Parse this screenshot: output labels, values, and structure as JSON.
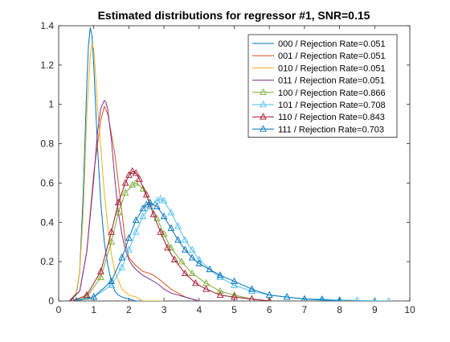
{
  "chart_data": {
    "type": "line",
    "title": "Estimated distributions for regressor #1,  SNR=0.15",
    "xlabel": "",
    "ylabel": "",
    "xlim": [
      0,
      10
    ],
    "ylim": [
      0,
      1.4
    ],
    "xticks": [
      0,
      1,
      2,
      3,
      4,
      5,
      6,
      7,
      8,
      9,
      10
    ],
    "yticks": [
      0,
      0.2,
      0.4,
      0.6,
      0.8,
      1,
      1.2,
      1.4
    ],
    "grid": false,
    "legend_position": "top-right",
    "series": [
      {
        "name": "000 / Rejection Rate=0.051",
        "color": "#0072BD",
        "marker": "none",
        "x": [
          0.3,
          0.5,
          0.6,
          0.7,
          0.8,
          0.85,
          0.9,
          0.95,
          1.0,
          1.05,
          1.1,
          1.2,
          1.3,
          1.4,
          1.5,
          1.6,
          1.7,
          1.8,
          2.0,
          2.2,
          2.4,
          2.6,
          2.8,
          3.0
        ],
        "y": [
          0.0,
          0.03,
          0.15,
          0.55,
          1.1,
          1.3,
          1.39,
          1.35,
          1.2,
          1.0,
          0.8,
          0.5,
          0.3,
          0.18,
          0.1,
          0.05,
          0.03,
          0.02,
          0.01,
          0.0,
          0.0,
          0.0,
          0.0,
          0.0
        ]
      },
      {
        "name": "001 / Rejection Rate=0.051",
        "color": "#D95319",
        "marker": "none",
        "x": [
          0.3,
          0.6,
          0.8,
          1.0,
          1.2,
          1.3,
          1.4,
          1.6,
          1.8,
          1.9,
          2.0,
          2.1,
          2.2,
          2.4,
          2.6,
          2.8,
          3.0,
          3.2,
          3.4,
          3.6,
          3.8,
          4.0
        ],
        "y": [
          0.0,
          0.05,
          0.25,
          0.65,
          0.92,
          0.99,
          0.95,
          0.75,
          0.45,
          0.3,
          0.22,
          0.2,
          0.18,
          0.15,
          0.14,
          0.12,
          0.09,
          0.06,
          0.04,
          0.02,
          0.01,
          0.0
        ]
      },
      {
        "name": "010 / Rejection Rate=0.051",
        "color": "#EDB120",
        "marker": "none",
        "x": [
          0.3,
          0.5,
          0.6,
          0.7,
          0.8,
          0.9,
          0.95,
          1.0,
          1.05,
          1.1,
          1.2,
          1.3,
          1.4,
          1.5,
          1.6,
          1.8,
          2.0,
          2.2,
          2.4,
          2.6,
          2.8,
          3.0
        ],
        "y": [
          0.0,
          0.04,
          0.15,
          0.45,
          0.95,
          1.25,
          1.31,
          1.28,
          1.15,
          1.0,
          0.78,
          0.55,
          0.38,
          0.24,
          0.15,
          0.06,
          0.03,
          0.02,
          0.0,
          0.0,
          0.0,
          0.0
        ]
      },
      {
        "name": "011 / Rejection Rate=0.051",
        "color": "#7E2F8E",
        "marker": "none",
        "x": [
          0.3,
          0.6,
          0.8,
          1.0,
          1.1,
          1.2,
          1.3,
          1.35,
          1.4,
          1.5,
          1.6,
          1.7,
          1.8,
          1.9,
          2.0,
          2.1,
          2.2,
          2.4,
          2.6,
          2.8,
          3.0,
          3.2,
          3.4,
          3.6,
          3.8,
          4.0
        ],
        "y": [
          0.0,
          0.05,
          0.25,
          0.62,
          0.85,
          0.98,
          1.02,
          1.01,
          0.97,
          0.82,
          0.62,
          0.45,
          0.34,
          0.26,
          0.21,
          0.18,
          0.16,
          0.13,
          0.11,
          0.09,
          0.06,
          0.04,
          0.03,
          0.02,
          0.01,
          0.0
        ]
      },
      {
        "name": "100 / Rejection Rate=0.866",
        "color": "#77AC30",
        "marker": "triangle",
        "x": [
          0.4,
          0.8,
          1.2,
          1.5,
          1.7,
          1.9,
          2.1,
          2.2,
          2.4,
          2.6,
          2.8,
          3.0,
          3.2,
          3.5,
          3.8,
          4.2,
          4.6,
          5.0,
          5.5,
          6.0
        ],
        "y": [
          0.0,
          0.02,
          0.12,
          0.3,
          0.45,
          0.55,
          0.59,
          0.6,
          0.57,
          0.5,
          0.42,
          0.34,
          0.27,
          0.2,
          0.14,
          0.09,
          0.05,
          0.03,
          0.01,
          0.0
        ]
      },
      {
        "name": "101 / Rejection Rate=0.708",
        "color": "#4DBEEE",
        "marker": "triangle",
        "x": [
          0.5,
          1.0,
          1.5,
          1.8,
          2.0,
          2.2,
          2.4,
          2.6,
          2.8,
          2.9,
          3.0,
          3.2,
          3.4,
          3.6,
          3.8,
          4.0,
          4.3,
          4.6,
          5.0,
          5.5,
          6.0,
          6.5,
          7.0,
          7.5,
          8.0,
          8.5,
          9.0,
          9.4
        ],
        "y": [
          0.0,
          0.02,
          0.08,
          0.17,
          0.26,
          0.35,
          0.43,
          0.48,
          0.51,
          0.52,
          0.51,
          0.45,
          0.38,
          0.31,
          0.26,
          0.21,
          0.16,
          0.12,
          0.08,
          0.05,
          0.03,
          0.02,
          0.01,
          0.01,
          0.005,
          0.003,
          0.001,
          0.0
        ]
      },
      {
        "name": "110 / Rejection Rate=0.843",
        "color": "#A2142F",
        "marker": "triangle",
        "x": [
          0.4,
          0.8,
          1.2,
          1.5,
          1.7,
          1.9,
          2.0,
          2.1,
          2.2,
          2.3,
          2.5,
          2.7,
          2.9,
          3.1,
          3.3,
          3.6,
          3.9,
          4.2,
          4.6,
          5.0,
          5.5,
          6.0
        ],
        "y": [
          0.0,
          0.03,
          0.15,
          0.35,
          0.5,
          0.6,
          0.64,
          0.66,
          0.65,
          0.62,
          0.54,
          0.44,
          0.35,
          0.27,
          0.21,
          0.14,
          0.09,
          0.06,
          0.03,
          0.02,
          0.01,
          0.0
        ]
      },
      {
        "name": "111 / Rejection Rate=0.703",
        "color": "#0072BD",
        "marker": "triangle",
        "x": [
          0.5,
          1.0,
          1.5,
          1.8,
          2.0,
          2.2,
          2.4,
          2.5,
          2.6,
          2.8,
          3.0,
          3.2,
          3.4,
          3.6,
          3.8,
          4.0,
          4.3,
          4.6,
          5.0,
          5.5,
          6.0,
          6.5,
          7.0,
          7.5,
          8.0
        ],
        "y": [
          0.0,
          0.02,
          0.1,
          0.22,
          0.32,
          0.41,
          0.47,
          0.49,
          0.5,
          0.48,
          0.43,
          0.37,
          0.31,
          0.26,
          0.22,
          0.19,
          0.16,
          0.13,
          0.1,
          0.06,
          0.03,
          0.02,
          0.01,
          0.005,
          0.0
        ]
      }
    ]
  }
}
